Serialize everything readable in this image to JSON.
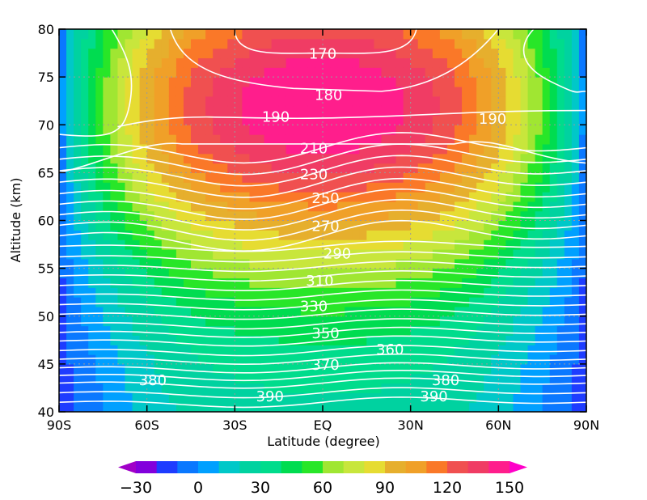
{
  "chart_data": {
    "type": "heatmap",
    "xlabel": "Latitude (degree)",
    "ylabel": "Altitude (km)",
    "xlim": [
      -90,
      90
    ],
    "ylim": [
      40,
      80
    ],
    "x_ticks": [
      {
        "value": -90,
        "label": "90S"
      },
      {
        "value": -60,
        "label": "60S"
      },
      {
        "value": -30,
        "label": "30S"
      },
      {
        "value": 0,
        "label": "EQ"
      },
      {
        "value": 30,
        "label": "30N"
      },
      {
        "value": 60,
        "label": "60N"
      },
      {
        "value": 90,
        "label": "90N"
      }
    ],
    "y_ticks": [
      40,
      45,
      50,
      55,
      60,
      65,
      70,
      75,
      80
    ],
    "grid": "dotted",
    "shading": {
      "levels": [
        -30,
        -20,
        -10,
        0,
        10,
        20,
        30,
        40,
        50,
        60,
        70,
        80,
        90,
        100,
        110,
        120,
        130,
        140,
        150
      ],
      "colors": [
        "#a000c8",
        "#8200dc",
        "#1e3cff",
        "#0a78ff",
        "#00a0ff",
        "#00c8c8",
        "#00d2a0",
        "#00dc8c",
        "#00dc50",
        "#28e628",
        "#a0e632",
        "#c8e63c",
        "#e6dc32",
        "#e6af2d",
        "#f0a028",
        "#fa7828",
        "#f05050",
        "#f03c64",
        "#ff1e8c",
        "#ff00c8"
      ],
      "peak": {
        "lat": 0,
        "alt": 72,
        "value": 150
      },
      "field_description": "maximum near equator at ~72 km, decreasing toward poles and lower altitudes"
    },
    "contours": {
      "color": "#ffffff",
      "labels": [
        {
          "value": 170,
          "lat": 0,
          "alt": 77.5
        },
        {
          "value": 180,
          "lat": 2,
          "alt": 73.2
        },
        {
          "value": 190,
          "lat": -16,
          "alt": 70.9
        },
        {
          "value": 190,
          "lat": 58,
          "alt": 70.7
        },
        {
          "value": 210,
          "lat": -3,
          "alt": 67.6
        },
        {
          "value": 230,
          "lat": -3,
          "alt": 64.9
        },
        {
          "value": 250,
          "lat": 1,
          "alt": 62.4
        },
        {
          "value": 270,
          "lat": 1,
          "alt": 59.5
        },
        {
          "value": 290,
          "lat": 5,
          "alt": 56.6
        },
        {
          "value": 310,
          "lat": -1,
          "alt": 53.8
        },
        {
          "value": 330,
          "lat": -3,
          "alt": 51.1
        },
        {
          "value": 350,
          "lat": 1,
          "alt": 48.3
        },
        {
          "value": 360,
          "lat": 23,
          "alt": 46.6
        },
        {
          "value": 370,
          "lat": 1,
          "alt": 45.0
        },
        {
          "value": 380,
          "lat": -58,
          "alt": 43.4
        },
        {
          "value": 380,
          "lat": 42,
          "alt": 43.4
        },
        {
          "value": 390,
          "lat": -18,
          "alt": 41.7
        },
        {
          "value": 390,
          "lat": 38,
          "alt": 41.7
        }
      ]
    },
    "colorbar": {
      "tick_labels": [
        "−30",
        "0",
        "30",
        "60",
        "90",
        "120",
        "150"
      ],
      "tick_values": [
        -30,
        0,
        30,
        60,
        90,
        120,
        150
      ]
    }
  }
}
